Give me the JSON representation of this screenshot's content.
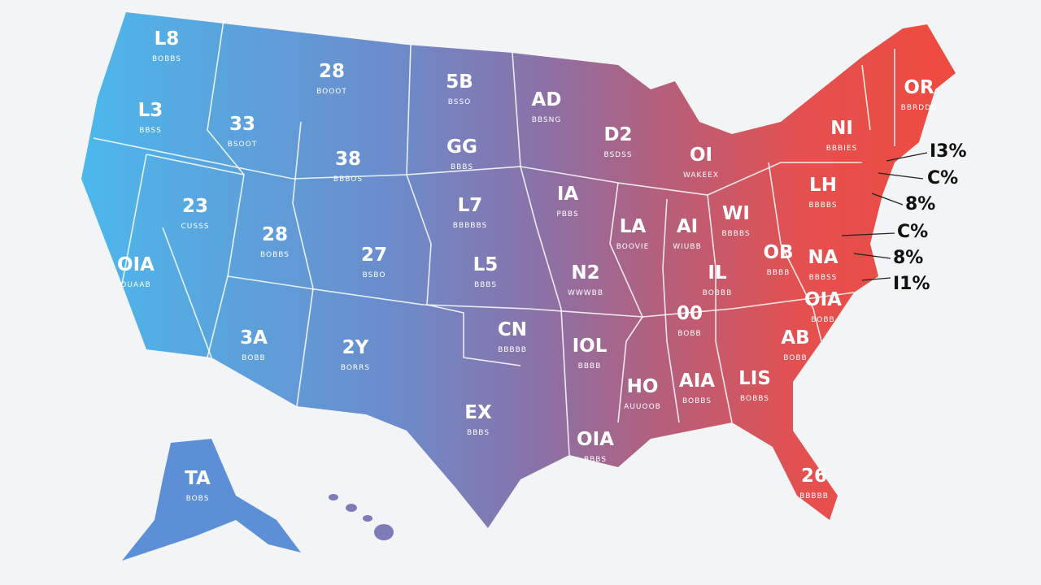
{
  "map": {
    "states": [
      {
        "label": "L8",
        "sublabel": "BOBBS"
      },
      {
        "label": "28",
        "sublabel": "BOOOT"
      },
      {
        "label": "5B",
        "sublabel": "BSSO"
      },
      {
        "label": "AD",
        "sublabel": "BBSNG"
      },
      {
        "label": "OR",
        "sublabel": "BBRDDB"
      },
      {
        "label": "L3",
        "sublabel": "BBSS"
      },
      {
        "label": "33",
        "sublabel": "BSOOT"
      },
      {
        "label": "D2",
        "sublabel": "BSDSS"
      },
      {
        "label": "OI",
        "sublabel": "WAKEEX"
      },
      {
        "label": "NI",
        "sublabel": "BBBIES"
      },
      {
        "label": "38",
        "sublabel": "BBBOS"
      },
      {
        "label": "GG",
        "sublabel": "BBBS"
      },
      {
        "label": "23",
        "sublabel": "CUSSS"
      },
      {
        "label": "L7",
        "sublabel": "BBBBBS"
      },
      {
        "label": "IA",
        "sublabel": "PBBS"
      },
      {
        "label": "LA",
        "sublabel": "BOOVIE"
      },
      {
        "label": "AI",
        "sublabel": "WIUBB"
      },
      {
        "label": "WI",
        "sublabel": "BBBBS"
      },
      {
        "label": "LH",
        "sublabel": "BBBBS"
      },
      {
        "label": "28",
        "sublabel": "BOBBS"
      },
      {
        "label": "OIA",
        "sublabel": "OUAAB"
      },
      {
        "label": "27",
        "sublabel": "BSBO"
      },
      {
        "label": "L5",
        "sublabel": "BBBS"
      },
      {
        "label": "N2",
        "sublabel": "WWWBB"
      },
      {
        "label": "OB",
        "sublabel": "BBBB"
      },
      {
        "label": "NA",
        "sublabel": "BBBSS"
      },
      {
        "label": "IL",
        "sublabel": "BOBBB"
      },
      {
        "label": "OIA",
        "sublabel": "BOBB"
      },
      {
        "label": "00",
        "sublabel": "BOBB"
      },
      {
        "label": "3A",
        "sublabel": "BOBB"
      },
      {
        "label": "2Y",
        "sublabel": "BORRS"
      },
      {
        "label": "CN",
        "sublabel": "BBBBB"
      },
      {
        "label": "IOL",
        "sublabel": "BBBB"
      },
      {
        "label": "AB",
        "sublabel": "BOBB"
      },
      {
        "label": "HO",
        "sublabel": "AUUOOB"
      },
      {
        "label": "AIA",
        "sublabel": "BOBBS"
      },
      {
        "label": "LIS",
        "sublabel": "BOBBS"
      },
      {
        "label": "EX",
        "sublabel": "BBBS"
      },
      {
        "label": "OIA",
        "sublabel": "BBBS"
      },
      {
        "label": "TA",
        "sublabel": "BOBS"
      },
      {
        "label": "26",
        "sublabel": "BBBBB"
      }
    ],
    "callouts": [
      "I3%",
      "C%",
      "8%",
      "C%",
      "8%",
      "I1%"
    ]
  }
}
